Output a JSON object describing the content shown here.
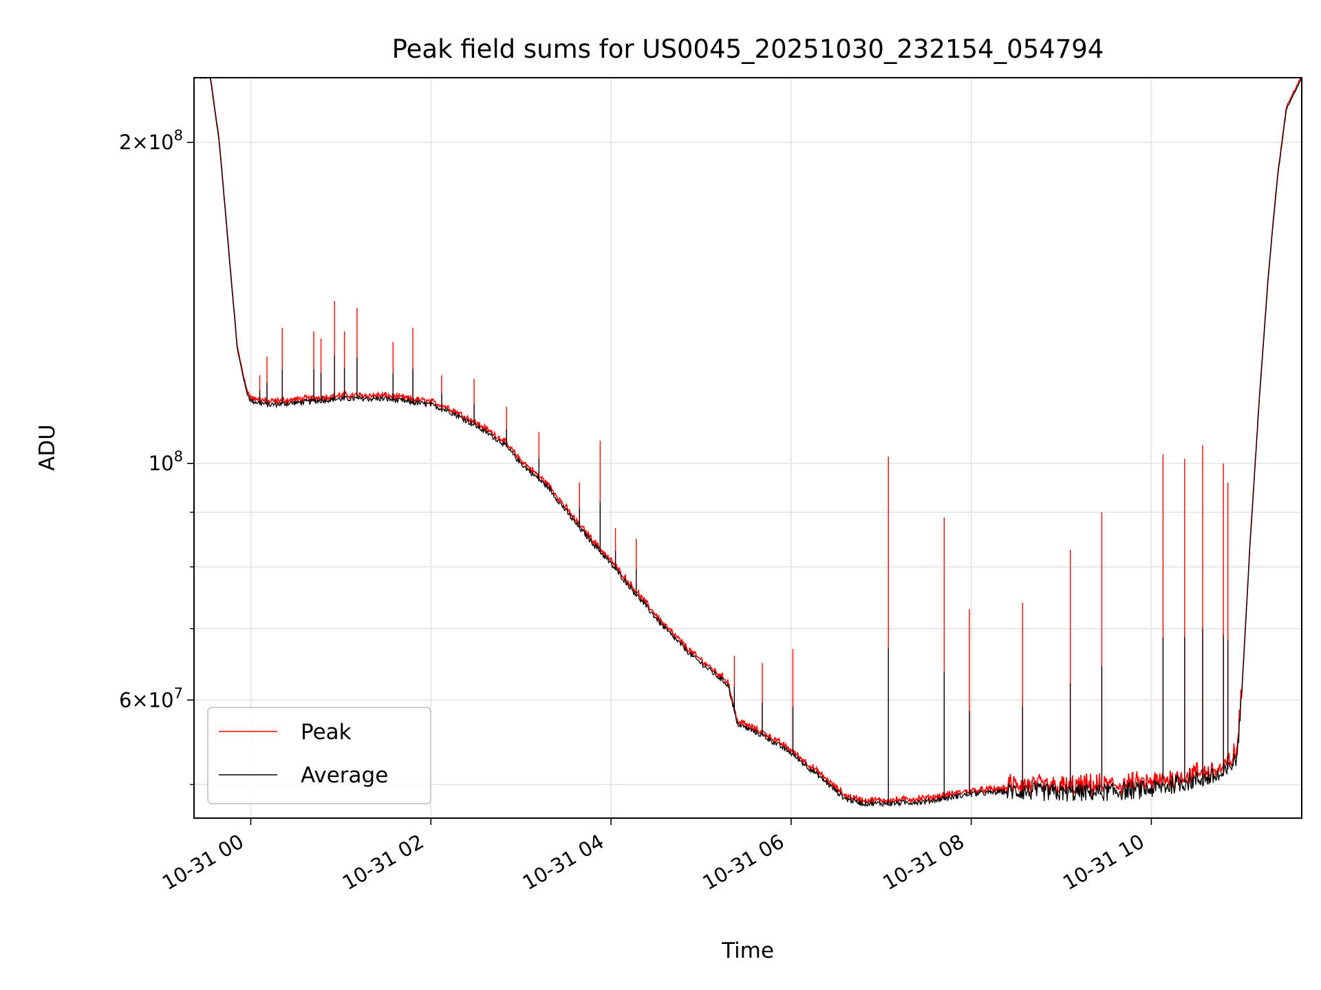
{
  "chart_data": {
    "type": "line",
    "title": "Peak field sums for US0045_20251030_232154_054794",
    "xlabel": "Time",
    "ylabel": "ADU",
    "yscale": "log",
    "xlim_hours": [
      -0.63,
      11.67
    ],
    "ylim": [
      46500000,
      230000000
    ],
    "grid": true,
    "x_ticks": [
      {
        "hour": 0,
        "label": "10-31 00"
      },
      {
        "hour": 2,
        "label": "10-31 02"
      },
      {
        "hour": 4,
        "label": "10-31 04"
      },
      {
        "hour": 6,
        "label": "10-31 06"
      },
      {
        "hour": 8,
        "label": "10-31 08"
      },
      {
        "hour": 10,
        "label": "10-31 10"
      }
    ],
    "y_major_ticks": [
      {
        "value": 100000000,
        "base": "10",
        "exp": "8"
      },
      {
        "value": 200000000,
        "coef": "2",
        "base": "10",
        "exp": "8"
      },
      {
        "value": 60000000,
        "coef": "6",
        "base": "10",
        "exp": "7"
      }
    ],
    "y_minor_ticks": [
      50000000,
      70000000,
      80000000,
      90000000
    ],
    "legend": {
      "position": "lower-left",
      "entries": [
        "Peak",
        "Average"
      ]
    },
    "series": [
      {
        "name": "Average",
        "color": "#000000",
        "x_hours": [
          -0.63,
          -0.45,
          -0.35,
          -0.25,
          -0.15,
          -0.05,
          0.0,
          0.2,
          0.5,
          1.0,
          1.5,
          2.0,
          2.2,
          2.5,
          2.8,
          3.0,
          3.3,
          3.6,
          4.0,
          4.3,
          4.6,
          4.9,
          5.2,
          5.3,
          5.35,
          5.4,
          5.7,
          6.0,
          6.3,
          6.6,
          6.8,
          7.1,
          7.5,
          8.0,
          8.5,
          9.0,
          9.5,
          10.0,
          10.5,
          10.8,
          10.95,
          11.0,
          11.1,
          11.2,
          11.3,
          11.4,
          11.5,
          11.67
        ],
        "values": [
          230000000,
          230000000,
          200000000,
          160000000,
          128000000,
          117000000,
          114500000,
          113500000,
          114000000,
          115000000,
          115000000,
          113500000,
          112000000,
          108500000,
          104500000,
          100000000,
          95000000,
          88000000,
          80500000,
          75000000,
          70000000,
          66000000,
          63000000,
          62000000,
          59500000,
          57000000,
          55500000,
          53500000,
          51000000,
          48500000,
          48000000,
          48000000,
          48200000,
          49000000,
          49300000,
          49100000,
          49200000,
          49500000,
          50500000,
          51000000,
          53000000,
          60000000,
          85000000,
          115000000,
          150000000,
          185000000,
          215000000,
          230000000
        ]
      },
      {
        "name": "Peak",
        "color": "#ff0000",
        "spikes": [
          {
            "hour": 0.1,
            "value": 121000000
          },
          {
            "hour": 0.18,
            "value": 126000000
          },
          {
            "hour": 0.35,
            "value": 134000000
          },
          {
            "hour": 0.7,
            "value": 133000000
          },
          {
            "hour": 0.78,
            "value": 131000000
          },
          {
            "hour": 0.93,
            "value": 142000000
          },
          {
            "hour": 1.04,
            "value": 133000000
          },
          {
            "hour": 1.18,
            "value": 140000000
          },
          {
            "hour": 1.58,
            "value": 130000000
          },
          {
            "hour": 1.8,
            "value": 134000000
          },
          {
            "hour": 2.12,
            "value": 121000000
          },
          {
            "hour": 2.48,
            "value": 120000000
          },
          {
            "hour": 2.84,
            "value": 113000000
          },
          {
            "hour": 3.2,
            "value": 107000000
          },
          {
            "hour": 3.65,
            "value": 96000000
          },
          {
            "hour": 3.88,
            "value": 105000000
          },
          {
            "hour": 4.05,
            "value": 87000000
          },
          {
            "hour": 4.28,
            "value": 85000000
          },
          {
            "hour": 5.37,
            "value": 66000000
          },
          {
            "hour": 5.68,
            "value": 65000000
          },
          {
            "hour": 6.02,
            "value": 67000000
          },
          {
            "hour": 7.08,
            "value": 101500000
          },
          {
            "hour": 7.7,
            "value": 89000000
          },
          {
            "hour": 7.98,
            "value": 73000000
          },
          {
            "hour": 8.57,
            "value": 74000000
          },
          {
            "hour": 9.1,
            "value": 83000000
          },
          {
            "hour": 9.45,
            "value": 90000000
          },
          {
            "hour": 10.13,
            "value": 102000000
          },
          {
            "hour": 10.37,
            "value": 101000000
          },
          {
            "hour": 10.57,
            "value": 104000000
          },
          {
            "hour": 10.8,
            "value": 100000000
          },
          {
            "hour": 10.85,
            "value": 96000000
          }
        ]
      }
    ]
  }
}
